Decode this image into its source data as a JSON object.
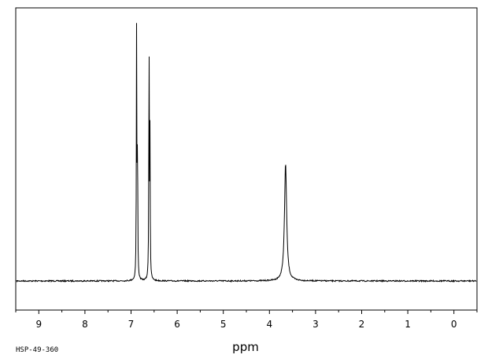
{
  "chart_data": {
    "type": "line",
    "xlabel": "ppm",
    "xlim": [
      9.5,
      -0.5
    ],
    "x_reversed": true,
    "x_ticks": [
      "9",
      "8",
      "7",
      "6",
      "5",
      "4",
      "3",
      "2",
      "1",
      "0"
    ],
    "y_unit": "relative intensity",
    "ylim": [
      0,
      1
    ],
    "grid": false,
    "series": [
      {
        "peaks": [
          {
            "ppm": 6.88,
            "height": 0.97
          },
          {
            "ppm": 6.86,
            "height": 0.56
          },
          {
            "ppm": 6.61,
            "height": 0.96
          },
          {
            "ppm": 6.59,
            "height": 0.55
          },
          {
            "ppm": 3.65,
            "height": 0.46
          }
        ]
      }
    ]
  },
  "footer": {
    "code": "HSP-49-360"
  }
}
